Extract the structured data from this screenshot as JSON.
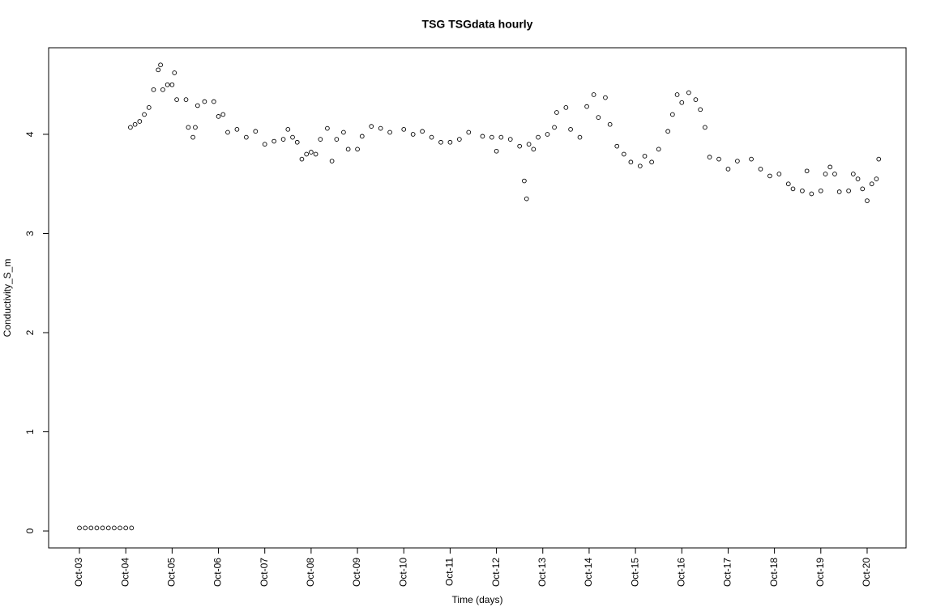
{
  "chart_data": {
    "type": "scatter",
    "title": "TSG TSGdata hourly",
    "x_label": "Time (days)",
    "y_label": "Conductivity_S_m",
    "x": [
      3,
      3.125,
      3.25,
      3.375,
      3.5,
      3.625,
      3.75,
      3.875,
      4,
      4.125,
      4.1,
      4.2,
      4.3,
      4.4,
      4.5,
      4.6,
      4.7,
      4.75,
      4.8,
      4.9,
      5.0,
      5.05,
      5.1,
      5.3,
      5.35,
      5.45,
      5.5,
      5.55,
      5.7,
      5.9,
      6.0,
      6.1,
      6.2,
      6.4,
      6.6,
      6.8,
      7.0,
      7.2,
      7.4,
      7.5,
      7.6,
      7.7,
      7.8,
      7.9,
      8.0,
      8.1,
      8.2,
      8.35,
      8.45,
      8.55,
      8.7,
      8.8,
      9.0,
      9.1,
      9.3,
      9.5,
      9.7,
      10.0,
      10.2,
      10.4,
      10.6,
      10.8,
      11.0,
      11.2,
      11.4,
      11.7,
      11.9,
      12.0,
      12.1,
      12.3,
      12.5,
      12.6,
      12.65,
      12.7,
      12.8,
      12.9,
      13.1,
      13.25,
      13.3,
      13.5,
      13.6,
      13.8,
      13.95,
      14.1,
      14.2,
      14.35,
      14.45,
      14.6,
      14.75,
      14.9,
      15.1,
      15.2,
      15.35,
      15.5,
      15.7,
      15.8,
      15.9,
      16.0,
      16.15,
      16.3,
      16.4,
      16.5,
      16.6,
      16.8,
      17.0,
      17.2,
      17.5,
      17.7,
      17.9,
      18.1,
      18.3,
      18.4,
      18.6,
      18.7,
      18.8,
      19.0,
      19.1,
      19.2,
      19.3,
      19.4,
      19.6,
      19.7,
      19.8,
      19.9,
      20.0,
      20.1,
      20.2,
      20.25
    ],
    "series": [
      {
        "color": "#000000",
        "values": [
          0.03,
          0.03,
          0.03,
          0.03,
          0.03,
          0.03,
          0.03,
          0.03,
          0.03,
          0.03,
          4.07,
          4.1,
          4.13,
          4.2,
          4.27,
          4.45,
          4.65,
          4.7,
          4.45,
          4.5,
          4.5,
          4.62,
          4.35,
          4.35,
          4.07,
          3.97,
          4.07,
          4.29,
          4.33,
          4.33,
          4.18,
          4.2,
          4.02,
          4.05,
          3.97,
          4.03,
          3.9,
          3.93,
          3.95,
          4.05,
          3.97,
          3.92,
          3.75,
          3.8,
          3.82,
          3.8,
          3.95,
          4.06,
          3.73,
          3.95,
          4.02,
          3.85,
          3.85,
          3.98,
          4.08,
          4.06,
          4.02,
          4.05,
          4.0,
          4.03,
          3.97,
          3.92,
          3.92,
          3.95,
          4.02,
          3.98,
          3.97,
          3.83,
          3.97,
          3.95,
          3.88,
          3.53,
          3.35,
          3.9,
          3.85,
          3.97,
          4.0,
          4.07,
          4.22,
          4.27,
          4.05,
          3.97,
          4.28,
          4.4,
          4.17,
          4.37,
          4.1,
          3.88,
          3.8,
          3.72,
          3.68,
          3.78,
          3.72,
          3.85,
          4.03,
          4.2,
          4.4,
          4.32,
          4.42,
          4.35,
          4.25,
          4.07,
          3.77,
          3.75,
          3.65,
          3.73,
          3.75,
          3.65,
          3.58,
          3.6,
          3.5,
          3.45,
          3.43,
          3.63,
          3.4,
          3.43,
          3.6,
          3.67,
          3.6,
          3.42,
          3.43,
          3.6,
          3.55,
          3.45,
          3.33,
          3.5,
          3.55,
          3.75
        ]
      }
    ],
    "xlim": [
      2.335,
      20.84
    ],
    "ylim": [
      -0.171,
      4.873
    ],
    "xticks": [
      {
        "value": 3,
        "label": "Oct-03"
      },
      {
        "value": 4,
        "label": "Oct-04"
      },
      {
        "value": 5,
        "label": "Oct-05"
      },
      {
        "value": 6,
        "label": "Oct-06"
      },
      {
        "value": 7,
        "label": "Oct-07"
      },
      {
        "value": 8,
        "label": "Oct-08"
      },
      {
        "value": 9,
        "label": "Oct-09"
      },
      {
        "value": 10,
        "label": "Oct-10"
      },
      {
        "value": 11,
        "label": "Oct-11"
      },
      {
        "value": 12,
        "label": "Oct-12"
      },
      {
        "value": 13,
        "label": "Oct-13"
      },
      {
        "value": 14,
        "label": "Oct-14"
      },
      {
        "value": 15,
        "label": "Oct-15"
      },
      {
        "value": 16,
        "label": "Oct-16"
      },
      {
        "value": 17,
        "label": "Oct-17"
      },
      {
        "value": 18,
        "label": "Oct-18"
      },
      {
        "value": 19,
        "label": "Oct-19"
      },
      {
        "value": 20,
        "label": "Oct-20"
      }
    ],
    "yticks": [
      0,
      1,
      2,
      3,
      4
    ]
  }
}
